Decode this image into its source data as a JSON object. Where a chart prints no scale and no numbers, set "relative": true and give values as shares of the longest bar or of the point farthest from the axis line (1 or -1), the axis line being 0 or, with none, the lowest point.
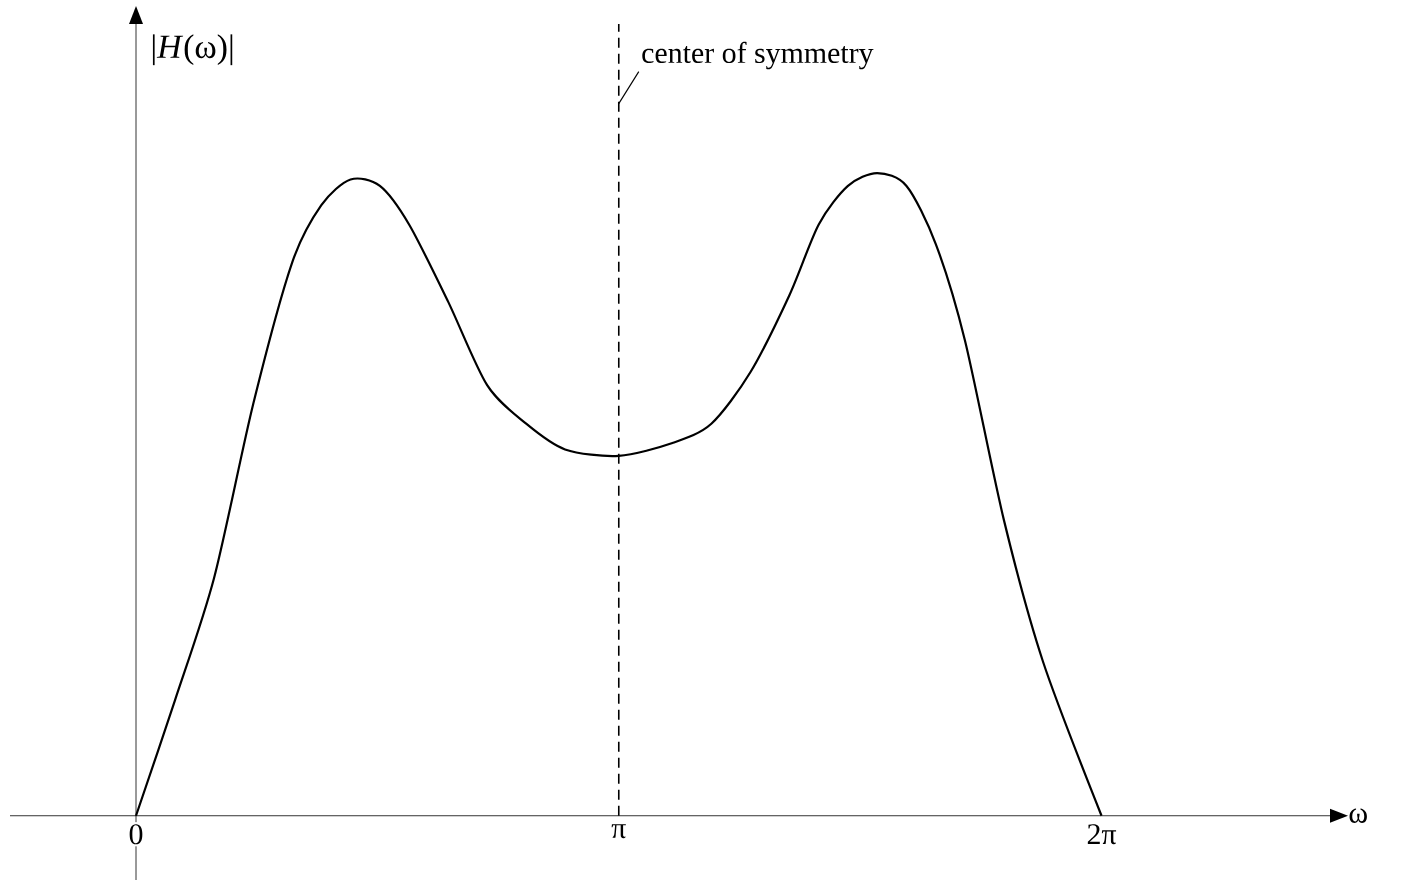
{
  "chart_data": {
    "type": "line",
    "relative": true,
    "xlabel": "ω",
    "ylabel": "|*H*(ω)|",
    "color": "#000000",
    "tick_labels": "x",
    "xlim": [
      -0.82,
      7.77
    ],
    "xticks": [
      0,
      {
        "value": 3.1416,
        "label": "π"
      },
      {
        "value": 6.2832,
        "label": "2π"
      }
    ],
    "x": [
      0,
      0.254,
      0.508,
      0.762,
      1.015,
      1.206,
      1.396,
      1.587,
      1.777,
      2.031,
      2.285,
      2.539,
      2.792,
      3.1416,
      3.491,
      3.744,
      3.998,
      4.252,
      4.443,
      4.633,
      4.823,
      5.014,
      5.204,
      5.394,
      5.648,
      5.902,
      6.2832
    ],
    "values": [
      0,
      0.18,
      0.37,
      0.64,
      0.86,
      0.95,
      0.99,
      0.98,
      0.92,
      0.8,
      0.67,
      0.61,
      0.57,
      0.56,
      0.58,
      0.61,
      0.69,
      0.81,
      0.92,
      0.98,
      1,
      0.98,
      0.89,
      0.74,
      0.46,
      0.24,
      0
    ],
    "ref_lines": [
      {
        "axis": "x",
        "value": 3.1416,
        "label": "center of symmetry",
        "line_style": "dashed"
      }
    ]
  }
}
